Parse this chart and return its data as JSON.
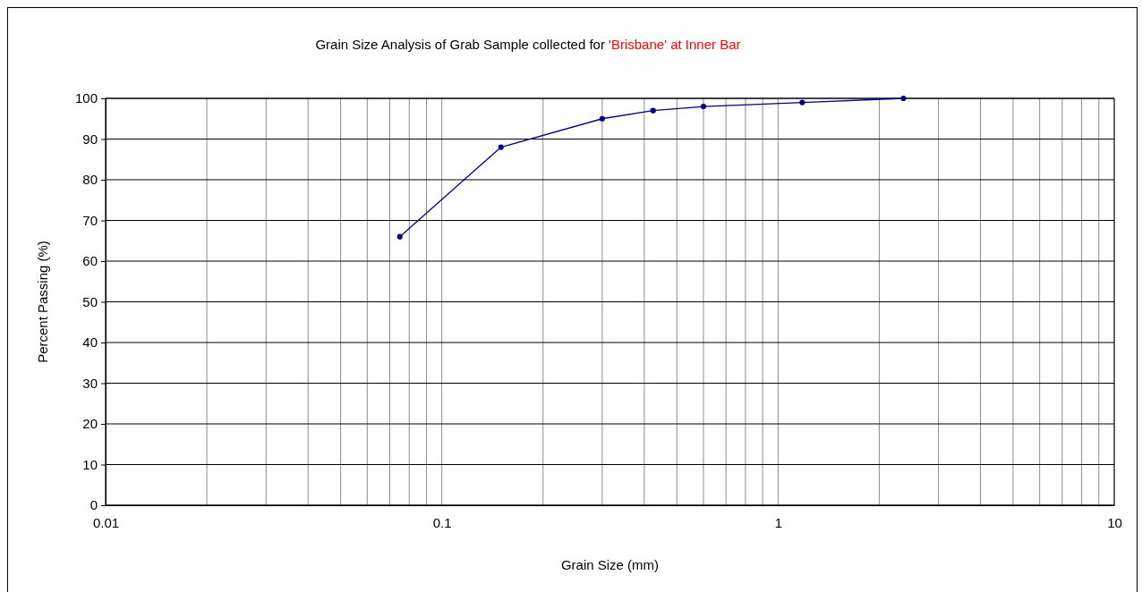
{
  "chart_data": {
    "type": "line",
    "title": "Grain Size Analysis of Grab Sample collected for 'Brisbane' at Inner Bar",
    "xlabel": "Grain Size (mm)",
    "ylabel": "Percent Passing (%)",
    "log": "x",
    "x": [
      0.075,
      0.15,
      0.3,
      0.425,
      0.6,
      1.18,
      2.36
    ],
    "series": [
      {
        "color": "#000080",
        "values": [
          66,
          88,
          95,
          97,
          98,
          99,
          100
        ]
      }
    ],
    "xlim": [
      0.01,
      10
    ],
    "xticks": [
      0.01,
      {
        "value": 0.02,
        "label": null
      },
      {
        "value": 0.03,
        "label": null
      },
      {
        "value": 0.04,
        "label": null
      },
      {
        "value": 0.05,
        "label": null
      },
      {
        "value": 0.06,
        "label": null
      },
      {
        "value": 0.07,
        "label": null
      },
      {
        "value": 0.08,
        "label": null
      },
      {
        "value": 0.09,
        "label": null
      },
      0.1,
      {
        "value": 0.2,
        "label": null
      },
      {
        "value": 0.3,
        "label": null
      },
      {
        "value": 0.4,
        "label": null
      },
      {
        "value": 0.5,
        "label": null
      },
      {
        "value": 0.6,
        "label": null
      },
      {
        "value": 0.7,
        "label": null
      },
      {
        "value": 0.8,
        "label": null
      },
      {
        "value": 0.9,
        "label": null
      },
      1,
      {
        "value": 2,
        "label": null
      },
      {
        "value": 3,
        "label": null
      },
      {
        "value": 4,
        "label": null
      },
      {
        "value": 5,
        "label": null
      },
      {
        "value": 6,
        "label": null
      },
      {
        "value": 7,
        "label": null
      },
      {
        "value": 8,
        "label": null
      },
      {
        "value": 9,
        "label": null
      },
      10
    ],
    "ylim": [
      0,
      100
    ],
    "yticks": [
      0,
      10,
      20,
      30,
      40,
      50,
      60,
      70,
      80,
      90,
      100
    ],
    "grid": true,
    "marker": "circle",
    "line_style": "solid"
  }
}
